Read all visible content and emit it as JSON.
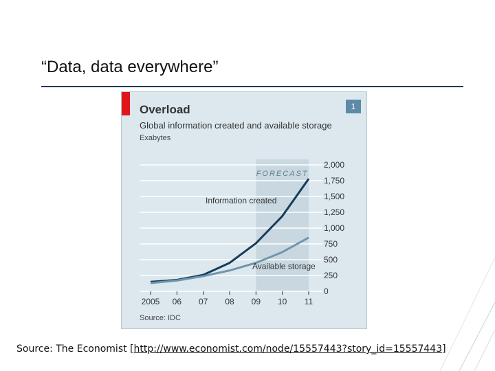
{
  "slide": {
    "title": "“Data, data everywhere”",
    "source_prefix": "Source: The Economist [",
    "source_link": "http://www.economist.com/node/15557443?story_id=15557443",
    "source_suffix": "]"
  },
  "colors": {
    "panel_bg": "#dce8ee",
    "forecast_band": "#c9d8e0",
    "info_line": "#163c5a",
    "storage_line": "#6f96ad",
    "accent_red": "#e0161b"
  },
  "chart_data": {
    "type": "line",
    "title": "Overload",
    "subtitle": "Global information created and available storage",
    "unit_label": "Exabytes",
    "number_badge": "1",
    "source": "Source: IDC",
    "forecast_label": "FORECAST",
    "forecast_range": [
      2009,
      2011
    ],
    "x": [
      2005,
      2006,
      2007,
      2008,
      2009,
      2010,
      2011
    ],
    "x_tick_labels": [
      "2005",
      "06",
      "07",
      "08",
      "09",
      "10",
      "11"
    ],
    "ylim": [
      0,
      2000
    ],
    "y_ticks": [
      0,
      250,
      500,
      750,
      1000,
      1250,
      1500,
      1750,
      2000
    ],
    "y_tick_labels": [
      "0",
      "250",
      "500",
      "750",
      "1,000",
      "1,250",
      "1,500",
      "1,750",
      "2,000"
    ],
    "grid": true,
    "series": [
      {
        "name": "Information created",
        "values": [
          150,
          180,
          260,
          450,
          760,
          1190,
          1780
        ]
      },
      {
        "name": "Available storage",
        "values": [
          130,
          170,
          240,
          330,
          450,
          620,
          850
        ]
      }
    ]
  }
}
